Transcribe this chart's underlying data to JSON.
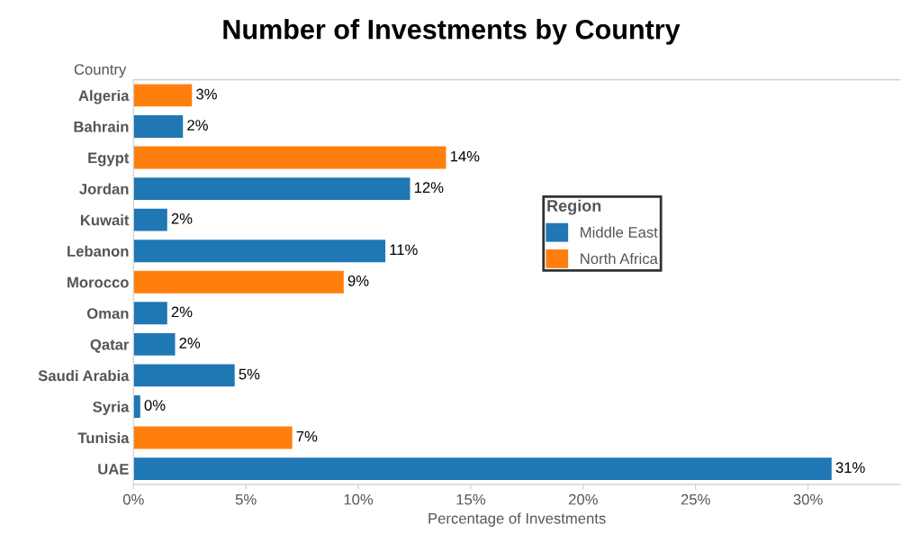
{
  "chart_data": {
    "type": "bar",
    "orientation": "horizontal",
    "title": "Number of Investments by Country",
    "ylabel": "Country",
    "xlabel": "Percentage of Investments",
    "legend_title": "Region",
    "categories": [
      "Algeria",
      "Bahrain",
      "Egypt",
      "Jordan",
      "Kuwait",
      "Lebanon",
      "Morocco",
      "Oman",
      "Qatar",
      "Saudi Arabia",
      "Syria",
      "Tunisia",
      "UAE"
    ],
    "series": [
      {
        "name": "Middle East",
        "color": "#1f77b4",
        "values": [
          null,
          2.2,
          null,
          12.3,
          1.5,
          11.2,
          null,
          1.5,
          1.85,
          4.5,
          0.3,
          null,
          31.05
        ],
        "value_labels": [
          null,
          "2%",
          null,
          "12%",
          "2%",
          "11%",
          null,
          "2%",
          "2%",
          "5%",
          "0%",
          null,
          "31%"
        ]
      },
      {
        "name": "North Africa",
        "color": "#ff7f0e",
        "values": [
          2.6,
          null,
          13.9,
          null,
          null,
          null,
          9.35,
          null,
          null,
          null,
          null,
          7.06,
          null
        ],
        "value_labels": [
          "3%",
          null,
          "14%",
          null,
          null,
          null,
          "9%",
          null,
          null,
          null,
          null,
          "7%",
          null
        ]
      }
    ],
    "xlim": [
      0,
      34.1
    ],
    "xticks": [
      {
        "value": 0,
        "label": "0%"
      },
      {
        "value": 5,
        "label": "5%"
      },
      {
        "value": 10,
        "label": "10%"
      },
      {
        "value": 15,
        "label": "15%"
      },
      {
        "value": 20,
        "label": "20%"
      },
      {
        "value": 25,
        "label": "25%"
      },
      {
        "value": 30,
        "label": "30%"
      }
    ],
    "grid": false,
    "legend": "right"
  }
}
